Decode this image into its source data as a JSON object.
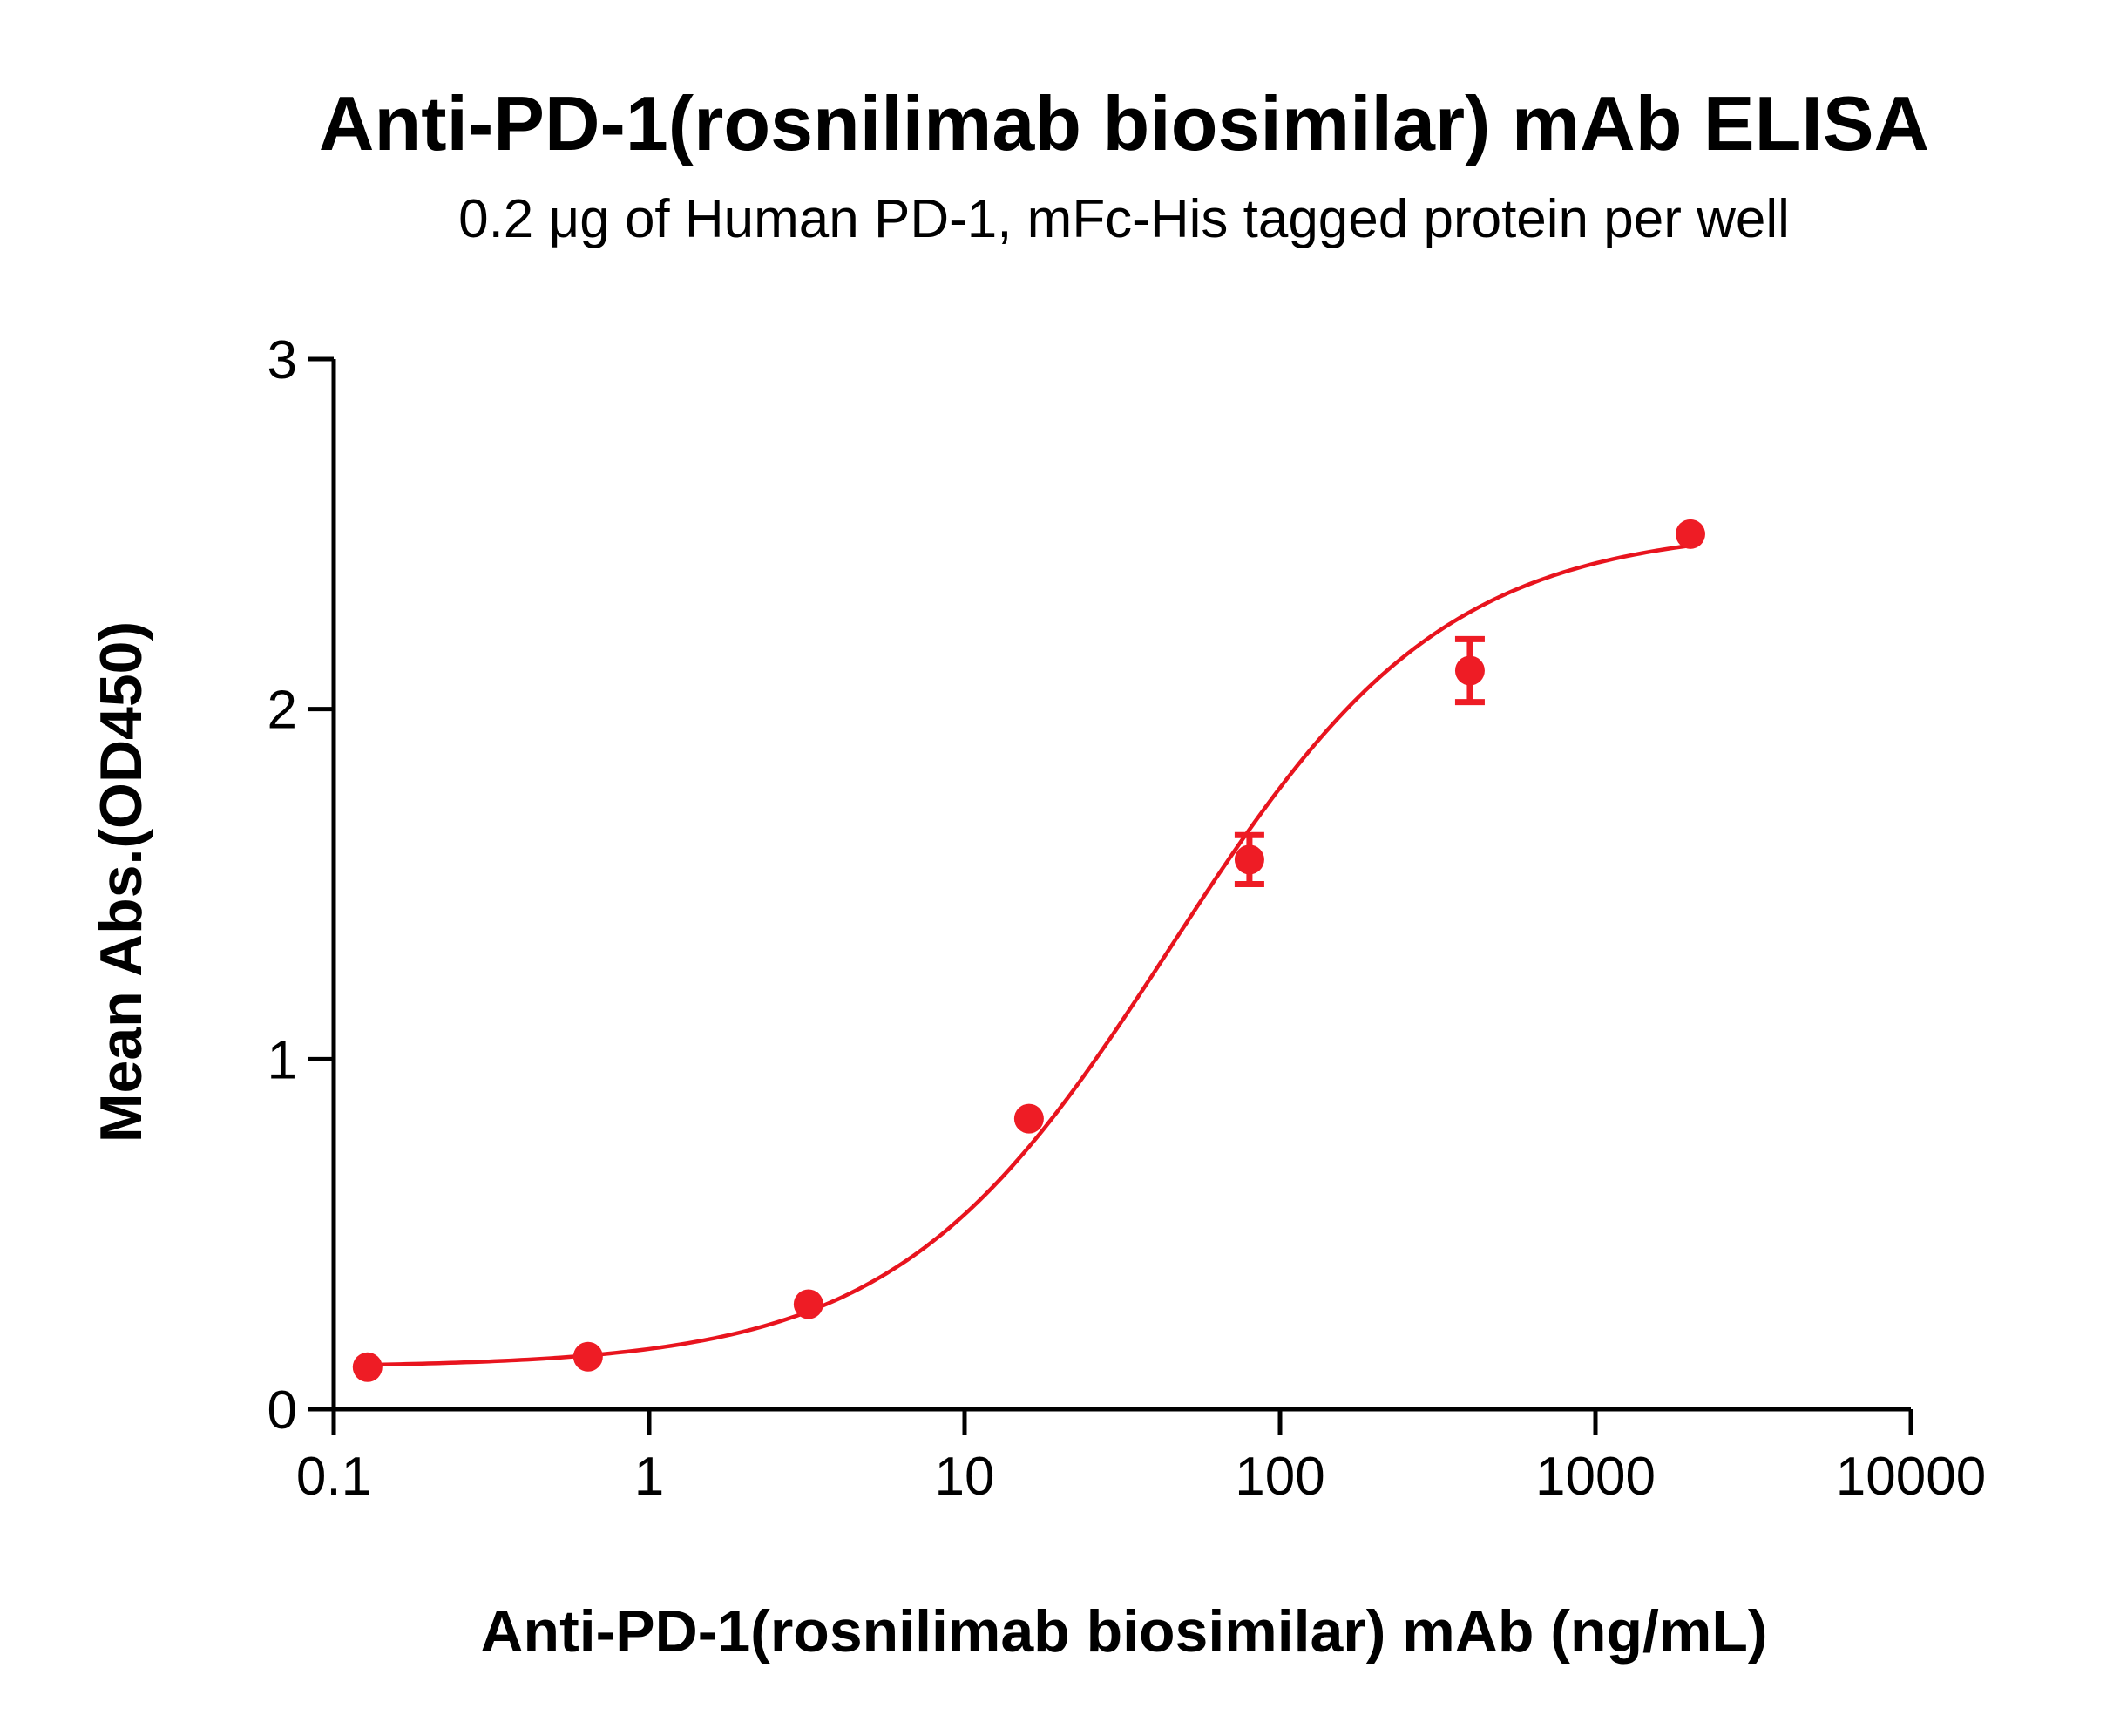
{
  "chart_data": {
    "type": "scatter",
    "title": "Anti-PD-1(rosnilimab biosimilar) mAb ELISA",
    "subtitle": "0.2 μg of Human PD-1, mFc-His tagged protein per well",
    "xlabel": "Anti-PD-1(rosnilimab biosimilar) mAb (ng/mL)",
    "ylabel": "Mean Abs.(OD450)",
    "xscale": "log",
    "xlim": [
      0.1,
      10000
    ],
    "ylim": [
      0,
      3
    ],
    "xticks": [
      {
        "value": 0.1,
        "label": "0.1"
      },
      {
        "value": 1,
        "label": "1"
      },
      {
        "value": 10,
        "label": "10"
      },
      {
        "value": 100,
        "label": "100"
      },
      {
        "value": 1000,
        "label": "1000"
      },
      {
        "value": 10000,
        "label": "10000"
      }
    ],
    "yticks": [
      {
        "value": 0,
        "label": "0"
      },
      {
        "value": 1,
        "label": "1"
      },
      {
        "value": 2,
        "label": "2"
      },
      {
        "value": 3,
        "label": "3"
      }
    ],
    "color": "#ee1c25",
    "grid": false,
    "series": [
      {
        "points": [
          {
            "x": 0.128,
            "y": 0.12,
            "err": 0.0
          },
          {
            "x": 0.64,
            "y": 0.15,
            "err": 0.0
          },
          {
            "x": 3.2,
            "y": 0.3,
            "err": 0.0
          },
          {
            "x": 16,
            "y": 0.83,
            "err": 0.0
          },
          {
            "x": 80,
            "y": 1.57,
            "err": 0.07
          },
          {
            "x": 400,
            "y": 2.11,
            "err": 0.09
          },
          {
            "x": 2000,
            "y": 2.5,
            "err": 0.0
          }
        ],
        "fit": {
          "model": "4PL",
          "bottom": 0.12,
          "top": 2.52,
          "ec50": 45,
          "hill": 1.0
        }
      }
    ]
  }
}
